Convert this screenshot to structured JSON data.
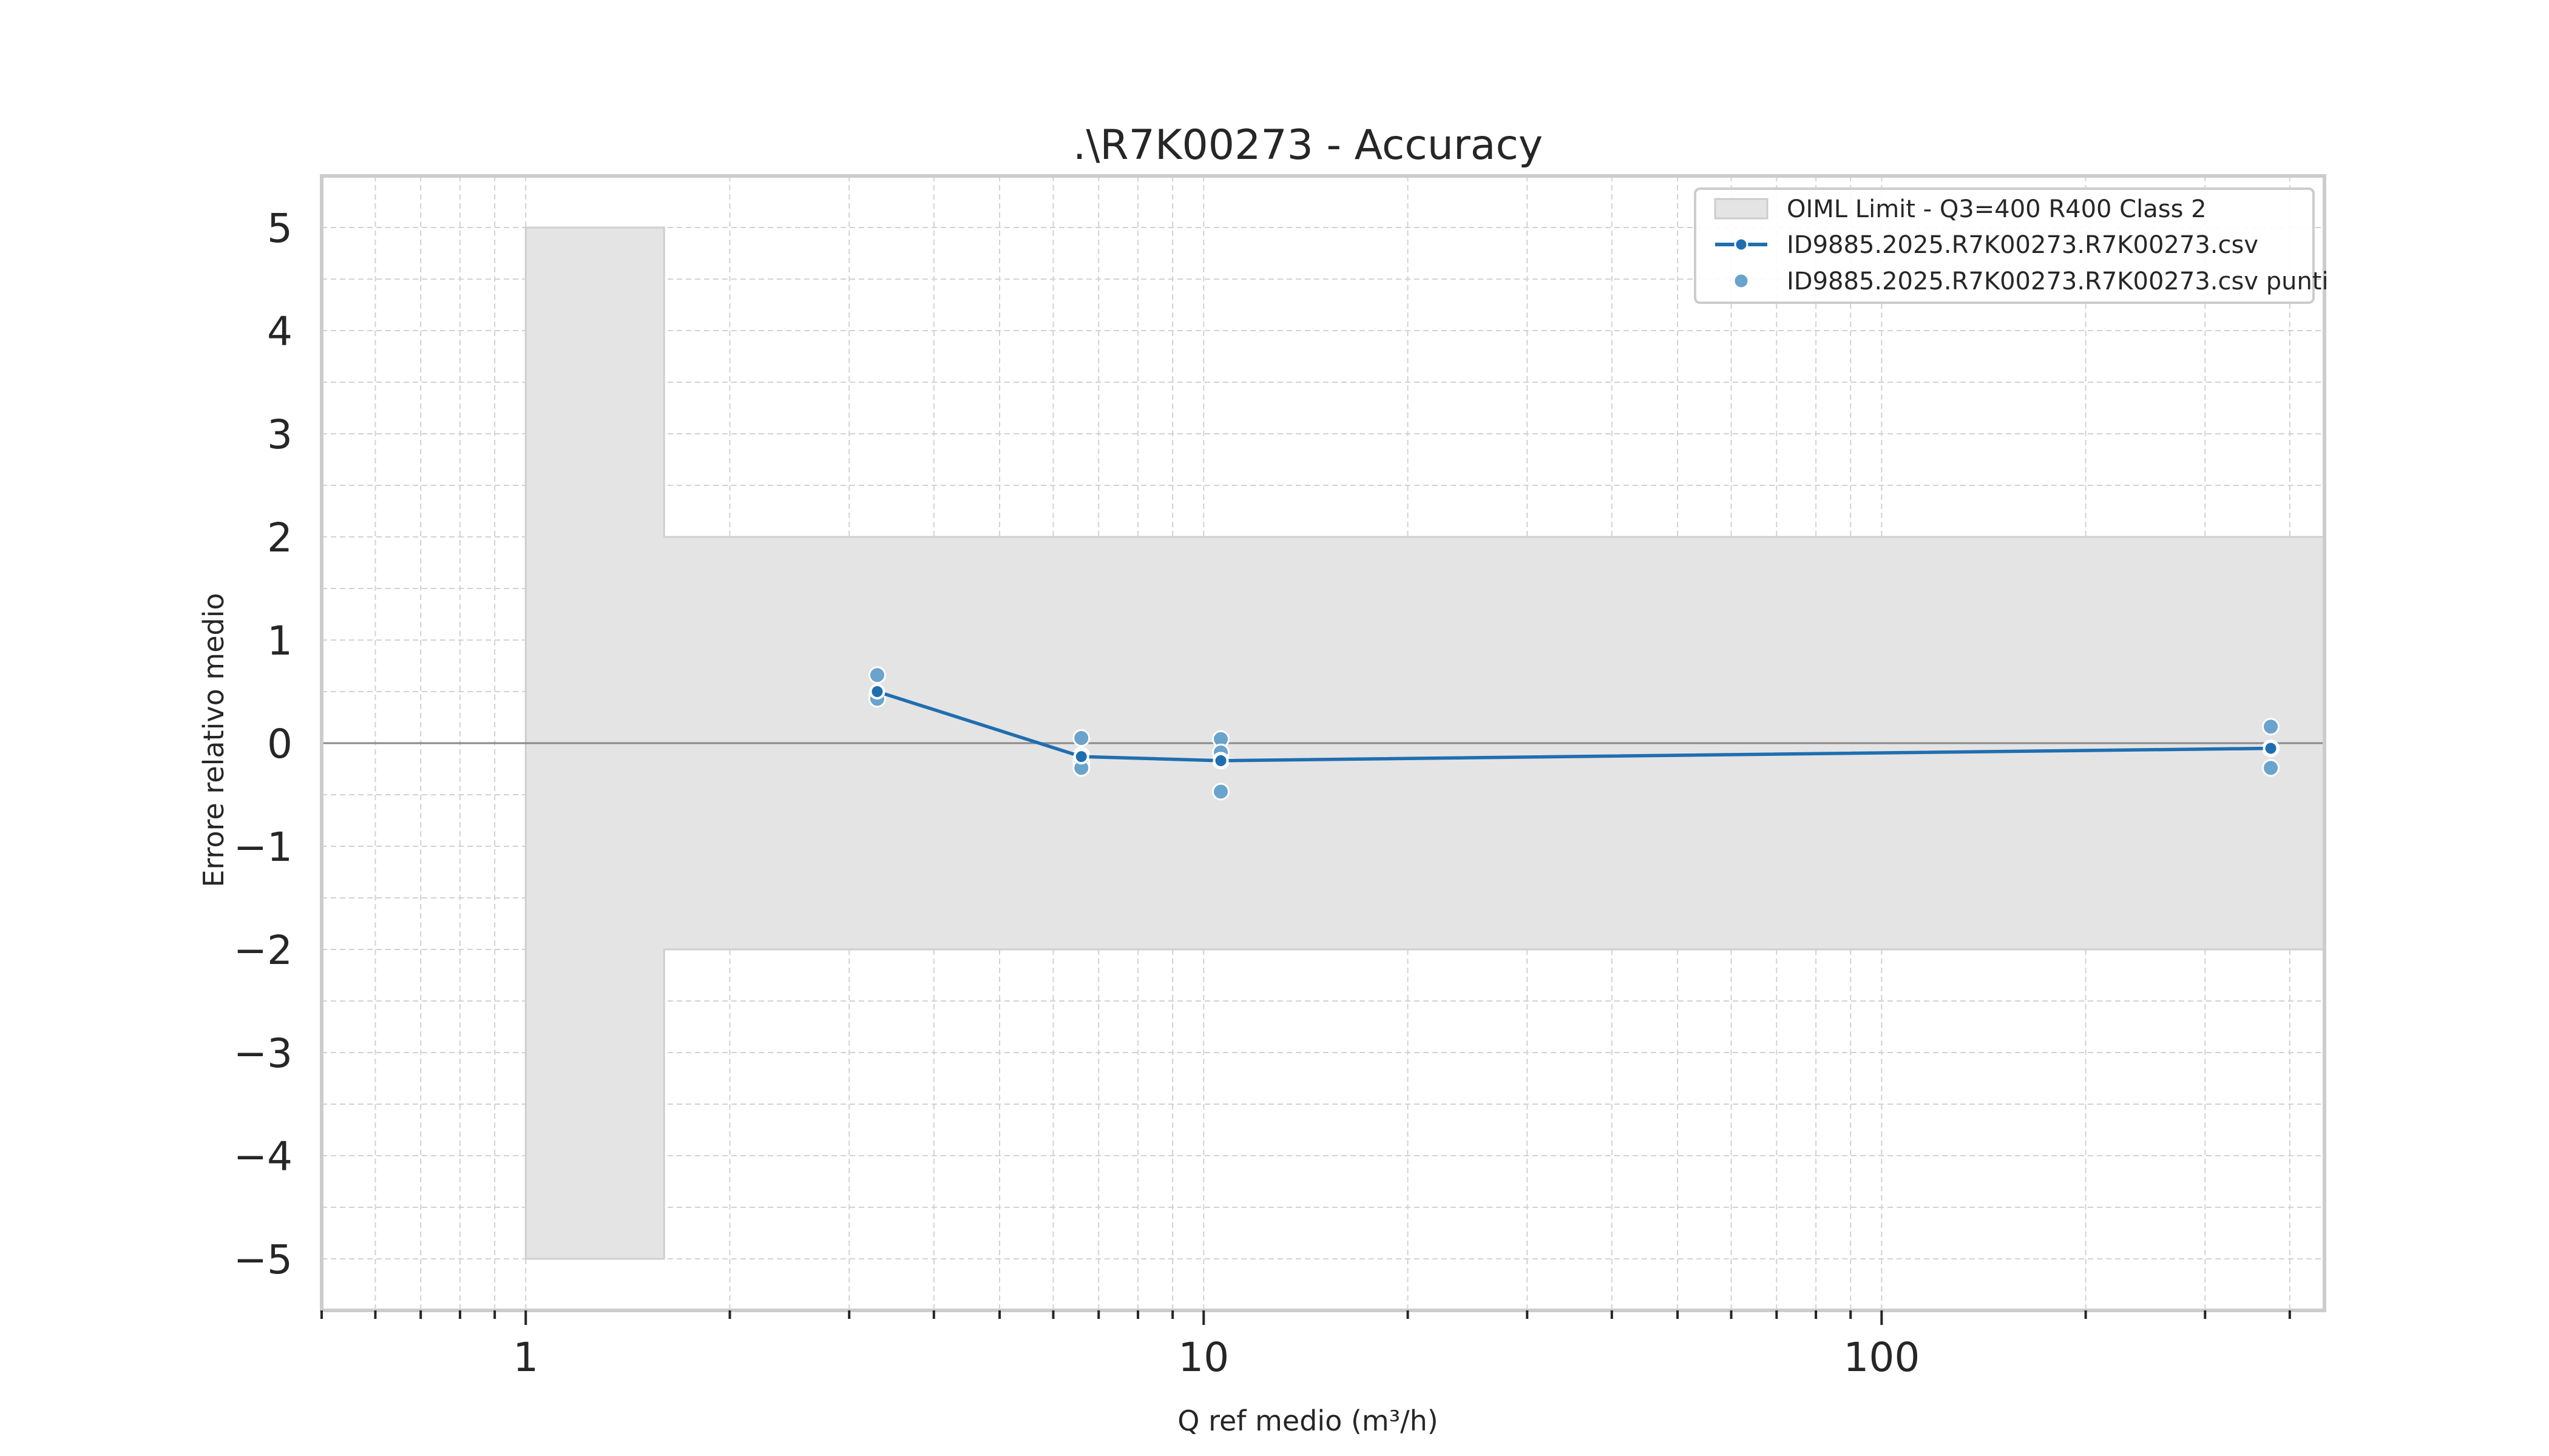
{
  "chart_data": {
    "type": "line",
    "title": ".\\R7K00273 - Accuracy",
    "xlabel": "Q ref medio (m³/h)",
    "ylabel": "Errore relativo medio",
    "x_scale": "log",
    "xlim": [
      0.5,
      450
    ],
    "ylim": [
      -5.5,
      5.5
    ],
    "x_ticks": [
      1,
      10,
      100
    ],
    "x_tick_labels": [
      "1",
      "10",
      "100"
    ],
    "y_ticks": [
      5,
      4,
      3,
      2,
      1,
      0,
      -1,
      -2,
      -3,
      -4,
      -5
    ],
    "y_tick_labels": [
      "5",
      "4",
      "3",
      "2",
      "1",
      "0",
      "−1",
      "−2",
      "−3",
      "−4",
      "−5"
    ],
    "grid": true,
    "legend_position": "top-right",
    "limit_band": {
      "name": "OIML Limit - Q3=400 R400 Class 2",
      "color": "#e4e4e4",
      "x": [
        1.0,
        1.6,
        1.6,
        500
      ],
      "upper": [
        5,
        5,
        2,
        2
      ],
      "lower": [
        -5,
        -5,
        -2,
        -2
      ]
    },
    "series": [
      {
        "name": "ID9885.2025.R7K00273.R7K00273.csv",
        "color": "#1f6eb0",
        "x": [
          3.3,
          6.6,
          10.6,
          375
        ],
        "y": [
          0.5,
          -0.13,
          -0.17,
          -0.05
        ]
      },
      {
        "name": "ID9885.2025.R7K00273.R7K00273.csv punti",
        "color": "#6aa3cc",
        "x": [
          3.3,
          3.3,
          3.3,
          6.6,
          6.6,
          6.6,
          6.6,
          10.6,
          10.6,
          10.6,
          10.6,
          375,
          375,
          375
        ],
        "y": [
          0.66,
          0.47,
          0.43,
          0.05,
          -0.12,
          -0.19,
          -0.24,
          0.04,
          -0.09,
          -0.17,
          -0.47,
          0.16,
          -0.05,
          -0.24
        ]
      }
    ]
  }
}
